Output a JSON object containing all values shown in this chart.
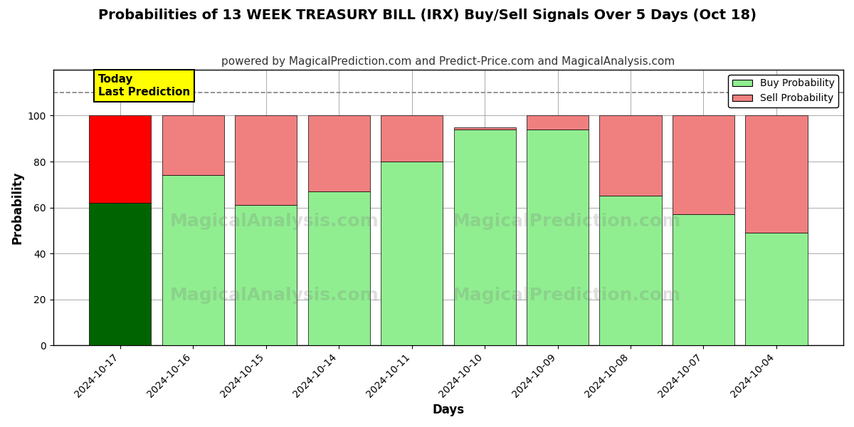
{
  "title": "Probabilities of 13 WEEK TREASURY BILL (IRX) Buy/Sell Signals Over 5 Days (Oct 18)",
  "subtitle": "powered by MagicalPrediction.com and Predict-Price.com and MagicalAnalysis.com",
  "xlabel": "Days",
  "ylabel": "Probability",
  "dates": [
    "2024-10-17",
    "2024-10-16",
    "2024-10-15",
    "2024-10-14",
    "2024-10-11",
    "2024-10-10",
    "2024-10-09",
    "2024-10-08",
    "2024-10-07",
    "2024-10-04"
  ],
  "buy_values": [
    62,
    74,
    61,
    67,
    80,
    94,
    94,
    65,
    57,
    49
  ],
  "sell_values": [
    38,
    26,
    39,
    33,
    20,
    1,
    6,
    35,
    43,
    51
  ],
  "today_buy_color": "#006400",
  "today_sell_color": "#FF0000",
  "buy_color": "#90EE90",
  "sell_color": "#F08080",
  "ylim": [
    0,
    120
  ],
  "yticks": [
    0,
    20,
    40,
    60,
    80,
    100
  ],
  "dashed_line_y": 110,
  "annotation_text": "Today\nLast Prediction",
  "watermark1": "MagicalAnalysis.com",
  "watermark2": "MagicalPrediction.com",
  "grid_color": "#aaaaaa",
  "title_fontsize": 14,
  "subtitle_fontsize": 11,
  "axis_label_fontsize": 12,
  "bar_width": 0.85
}
